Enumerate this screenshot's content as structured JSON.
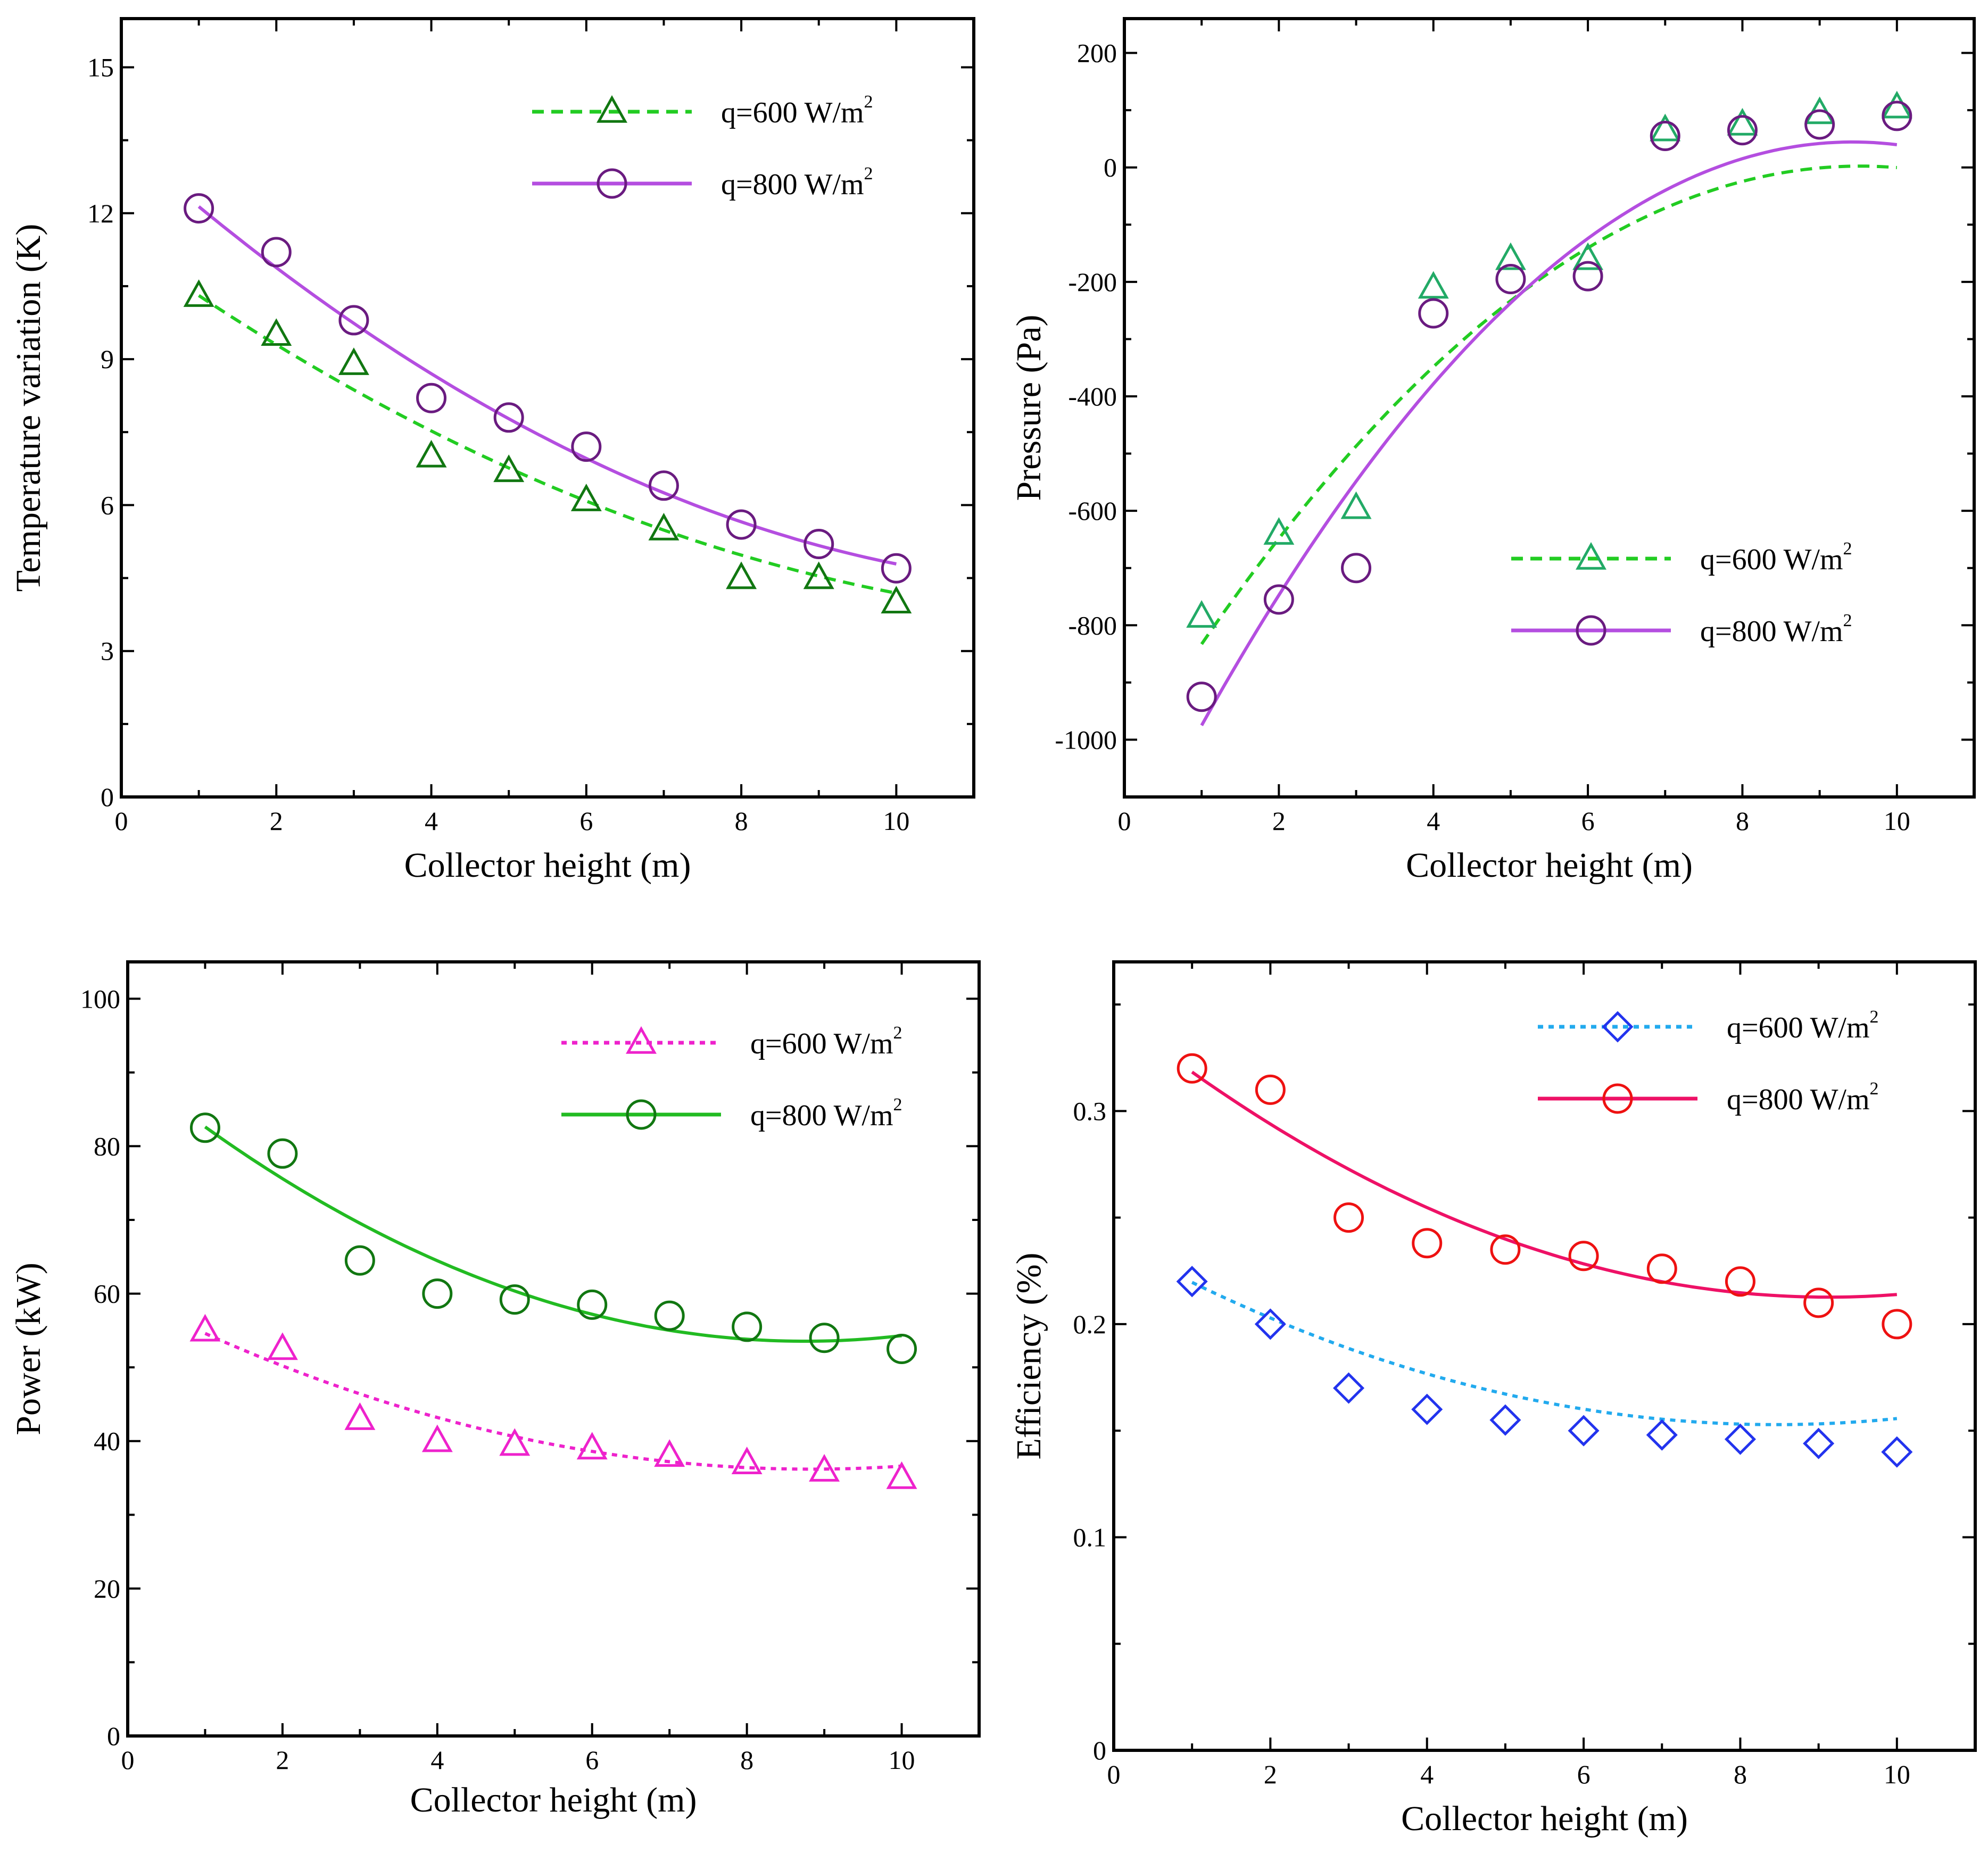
{
  "colors": {
    "green_dash": "#22cc22",
    "green_marker": "#117711",
    "purple": "#b44ee0",
    "purple_marker": "#6a1b80",
    "magenta": "#ee22cc",
    "dark_green": "#22bb22",
    "dark_green_marker": "#117711",
    "cyan": "#22aaee",
    "blue_marker": "#2233ee",
    "crimson": "#ee1166",
    "red_marker": "#ee1111"
  },
  "chart_data": [
    {
      "type": "line",
      "xlabel": "Collector height (m)",
      "ylabel": "Temperature variation (K)",
      "xlim": [
        0,
        11
      ],
      "ylim": [
        0,
        16
      ],
      "xticks": [
        0,
        2,
        4,
        6,
        8,
        10
      ],
      "xminor": [
        1,
        3,
        5,
        7,
        9
      ],
      "yticks": [
        0,
        3,
        6,
        9,
        12,
        15
      ],
      "yminor": [
        1.5,
        4.5,
        7.5,
        10.5,
        13.5
      ],
      "legend_position": "top-right",
      "series": [
        {
          "name": "q=600 W/m",
          "sup": "2",
          "marker": "triangle",
          "line": "dashed",
          "line_color": "#22cc22",
          "marker_color": "#117711",
          "x": [
            1,
            2,
            3,
            4,
            5,
            6,
            7,
            8,
            9,
            10
          ],
          "y": [
            10.3,
            9.5,
            8.9,
            7.0,
            6.7,
            6.1,
            5.5,
            4.5,
            4.5,
            4.0
          ],
          "fit": [
            0.0413,
            -1.134,
            11.4
          ]
        },
        {
          "name": "q=800 W/m",
          "sup": "2",
          "marker": "circle",
          "line": "solid",
          "line_color": "#b44ee0",
          "marker_color": "#6a1b80",
          "x": [
            1,
            2,
            3,
            4,
            5,
            6,
            7,
            8,
            9,
            10
          ],
          "y": [
            12.1,
            11.2,
            9.8,
            8.2,
            7.8,
            7.2,
            6.4,
            5.6,
            5.2,
            4.7
          ],
          "fit": [
            0.0548,
            -1.419,
            13.5
          ]
        }
      ]
    },
    {
      "type": "line",
      "xlabel": "Collector height (m)",
      "ylabel": "Pressure (Pa)",
      "xlim": [
        0,
        11
      ],
      "ylim": [
        -1100,
        260
      ],
      "xticks": [
        0,
        2,
        4,
        6,
        8,
        10
      ],
      "xminor": [
        1,
        3,
        5,
        7,
        9
      ],
      "yticks": [
        -1000,
        -800,
        -600,
        -400,
        -200,
        0,
        200
      ],
      "yminor": [
        -900,
        -700,
        -500,
        -300,
        -100,
        100
      ],
      "legend_position": "bottom-right",
      "series": [
        {
          "name": "q=600 W/m",
          "sup": "2",
          "marker": "triangle",
          "line": "dashed",
          "line_color": "#22cc22",
          "marker_color": "#22aa66",
          "x": [
            1,
            2,
            3,
            4,
            5,
            6,
            7,
            8,
            9,
            10
          ],
          "y": [
            -785,
            -640,
            -595,
            -210,
            -160,
            -160,
            65,
            75,
            95,
            105
          ],
          "fit": [
            -11.49,
            218.9,
            -1040.3
          ]
        },
        {
          "name": "q=800 W/m",
          "sup": "2",
          "marker": "circle",
          "line": "solid",
          "line_color": "#b44ee0",
          "marker_color": "#6a1b80",
          "x": [
            1,
            2,
            3,
            4,
            5,
            6,
            7,
            8,
            9,
            10
          ],
          "y": [
            -925,
            -755,
            -700,
            -255,
            -195,
            -190,
            55,
            65,
            75,
            90
          ],
          "fit": [
            -14.36,
            270.7,
            -1231.3
          ]
        }
      ]
    },
    {
      "type": "line",
      "xlabel": "Collector height (m)",
      "ylabel": "Power (kW)",
      "xlim": [
        0,
        11
      ],
      "ylim": [
        0,
        105
      ],
      "xticks": [
        0,
        2,
        4,
        6,
        8,
        10
      ],
      "xminor": [
        1,
        3,
        5,
        7,
        9
      ],
      "yticks": [
        0,
        20,
        40,
        60,
        80,
        100
      ],
      "yminor": [
        10,
        30,
        50,
        70,
        90
      ],
      "legend_position": "top-right",
      "series": [
        {
          "name": "q=600 W/m",
          "sup": "2",
          "marker": "triangle",
          "line": "dotted",
          "line_color": "#ee22cc",
          "marker_color": "#ee22cc",
          "x": [
            1,
            2,
            3,
            4,
            5,
            6,
            7,
            8,
            9,
            10
          ],
          "y": [
            55,
            52.5,
            43,
            40,
            39.5,
            39,
            38,
            37,
            36,
            35
          ],
          "fit": [
            0.3,
            -5.3,
            59.6
          ]
        },
        {
          "name": "q=800 W/m",
          "sup": "2",
          "marker": "circle",
          "line": "solid",
          "line_color": "#22bb22",
          "marker_color": "#117711",
          "x": [
            1,
            2,
            3,
            4,
            5,
            6,
            7,
            8,
            9,
            10
          ],
          "y": [
            82.5,
            79,
            64.5,
            60,
            59.2,
            58.5,
            57,
            55.5,
            54,
            52.5
          ],
          "fit": [
            0.484,
            -8.47,
            90.6
          ]
        }
      ]
    },
    {
      "type": "line",
      "xlabel": "Collector height (m)",
      "ylabel": "Efficiency (%)",
      "xlim": [
        0,
        11
      ],
      "ylim": [
        0,
        0.37
      ],
      "xticks": [
        0,
        2,
        4,
        6,
        8,
        10
      ],
      "xminor": [
        1,
        3,
        5,
        7,
        9
      ],
      "yticks": [
        0,
        0.1,
        0.2,
        0.3
      ],
      "yminor": [
        0.05,
        0.15,
        0.25,
        0.35
      ],
      "legend_position": "top-right",
      "series": [
        {
          "name": "q=600 W/m",
          "sup": "2",
          "marker": "diamond",
          "line": "dotted",
          "line_color": "#22aaee",
          "marker_color": "#2233ee",
          "x": [
            1,
            2,
            3,
            4,
            5,
            6,
            7,
            8,
            9,
            10
          ],
          "y": [
            0.22,
            0.2,
            0.17,
            0.16,
            0.155,
            0.15,
            0.148,
            0.146,
            0.144,
            0.14
          ],
          "fit": [
            0.0012,
            -0.0203,
            0.2387
          ]
        },
        {
          "name": "q=800 W/m",
          "sup": "2",
          "marker": "circle",
          "line": "solid",
          "line_color": "#ee1166",
          "marker_color": "#ee1111",
          "x": [
            1,
            2,
            3,
            4,
            5,
            6,
            7,
            8,
            9,
            10
          ],
          "y": [
            0.32,
            0.31,
            0.25,
            0.238,
            0.235,
            0.232,
            0.226,
            0.22,
            0.21,
            0.2
          ],
          "fit": [
            0.0016,
            -0.0292,
            0.3459
          ]
        }
      ]
    }
  ]
}
